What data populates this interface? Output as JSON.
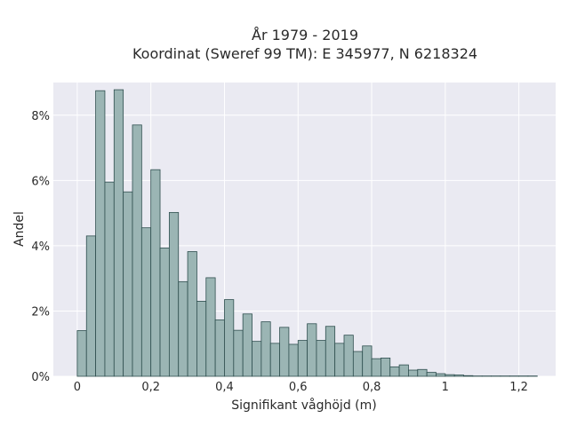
{
  "chart_data": {
    "type": "bar",
    "title_lines": [
      "År 1979 - 2019",
      "Koordinat (Sweref 99 TM): E 345977, N 6218324"
    ],
    "xlabel": "Signifikant våghöjd (m)",
    "ylabel": "Andel",
    "xlim": [
      -0.065,
      1.3
    ],
    "ylim": [
      0,
      9.0
    ],
    "x_ticks": [
      {
        "value": 0,
        "label": "0"
      },
      {
        "value": 0.2,
        "label": "0,2"
      },
      {
        "value": 0.4,
        "label": "0,4"
      },
      {
        "value": 0.6,
        "label": "0,6"
      },
      {
        "value": 0.8,
        "label": "0,8"
      },
      {
        "value": 1.0,
        "label": "1"
      },
      {
        "value": 1.2,
        "label": "1,2"
      }
    ],
    "y_ticks": [
      {
        "value": 0,
        "label": "0%"
      },
      {
        "value": 2,
        "label": "2%"
      },
      {
        "value": 4,
        "label": "4%"
      },
      {
        "value": 6,
        "label": "6%"
      },
      {
        "value": 8,
        "label": "8%"
      }
    ],
    "bin_start": 0.0,
    "bin_width": 0.025,
    "values": [
      1.4,
      4.3,
      8.75,
      5.95,
      8.78,
      5.65,
      7.7,
      4.55,
      6.33,
      3.93,
      5.02,
      2.9,
      3.82,
      2.3,
      3.02,
      1.73,
      2.35,
      1.41,
      1.91,
      1.07,
      1.67,
      1.01,
      1.5,
      0.98,
      1.1,
      1.61,
      1.1,
      1.53,
      1.01,
      1.26,
      0.76,
      0.93,
      0.54,
      0.56,
      0.29,
      0.35,
      0.19,
      0.21,
      0.12,
      0.08,
      0.05,
      0.04,
      0.02,
      0.01,
      0.01,
      0.01,
      0.01,
      0.01,
      0.01,
      0.01
    ],
    "colors": {
      "bar_fill": "#9bb5b4",
      "bar_edge": "#2f4f4f",
      "plot_bg": "#eaeaf2",
      "grid": "#ffffff"
    },
    "grid": true
  }
}
